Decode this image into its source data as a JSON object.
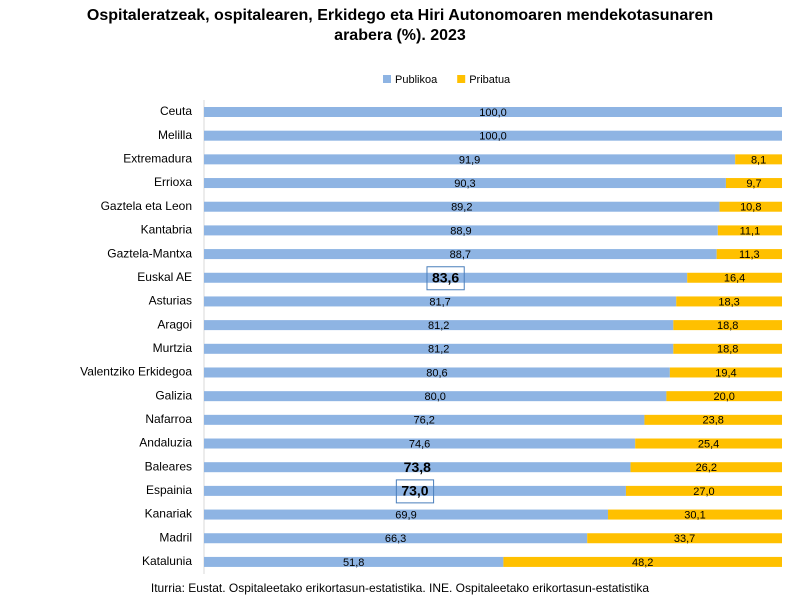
{
  "chart_data": {
    "type": "stacked-barh",
    "title": "Ospitaleratzeak, ospitalearen, Erkidego eta Hiri Autonomoaren mendekotasunaren arabera (%). 2023",
    "source": "Iturria: Eustat. Ospitaleetako erikortasun-estatistika. INE. Ospitaleetako erikortasun-estatistika",
    "categories": [
      "Ceuta",
      "Melilla",
      "Extremadura",
      "Errioxa",
      "Gaztela eta Leon",
      "Kantabria",
      "Gaztela-Mantxa",
      "Euskal AE",
      "Asturias",
      "Aragoi",
      "Murtzia",
      "Valentziko Erkidegoa",
      "Galizia",
      "Nafarroa",
      "Andaluzia",
      "Baleares",
      "Espainia",
      "Kanariak",
      "Madril",
      "Katalunia"
    ],
    "series": [
      {
        "name": "Publikoa",
        "color": "#8eb4e3",
        "values": [
          100.0,
          100.0,
          91.9,
          90.3,
          89.2,
          88.9,
          88.7,
          83.6,
          81.7,
          81.2,
          81.2,
          80.6,
          80.0,
          76.2,
          74.6,
          73.8,
          73.0,
          69.9,
          66.3,
          51.8
        ],
        "value_labels": [
          "100,0",
          "100,0",
          "91,9",
          "90,3",
          "89,2",
          "88,9",
          "88,7",
          "83,6",
          "81,7",
          "81,2",
          "81,2",
          "80,6",
          "80,0",
          "76,2",
          "74,6",
          "73,8",
          "73,0",
          "69,9",
          "66,3",
          "51,8"
        ]
      },
      {
        "name": "Pribatua",
        "color": "#ffc000",
        "values": [
          null,
          null,
          8.1,
          9.7,
          10.8,
          11.1,
          11.3,
          16.4,
          18.3,
          18.8,
          18.8,
          19.4,
          20.0,
          23.8,
          25.4,
          26.2,
          27.0,
          30.1,
          33.7,
          48.2
        ],
        "value_labels": [
          null,
          null,
          "8,1",
          "9,7",
          "10,8",
          "11,1",
          "11,3",
          "16,4",
          "18,3",
          "18,8",
          "18,8",
          "19,4",
          "20,0",
          "23,8",
          "25,4",
          "26,2",
          "27,0",
          "30,1",
          "33,7",
          "48,2"
        ]
      }
    ],
    "xlim": [
      0,
      100
    ],
    "legend": "top"
  }
}
